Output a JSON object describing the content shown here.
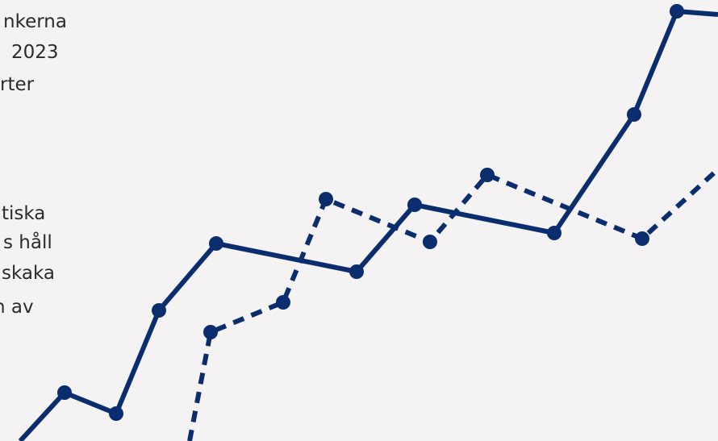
{
  "text_blocks": [
    {
      "lines": [
        "nkerna",
        "2023",
        "rter"
      ]
    },
    {
      "lines": [
        "tiska",
        "s håll",
        "skaka",
        "n av"
      ]
    }
  ]
}
